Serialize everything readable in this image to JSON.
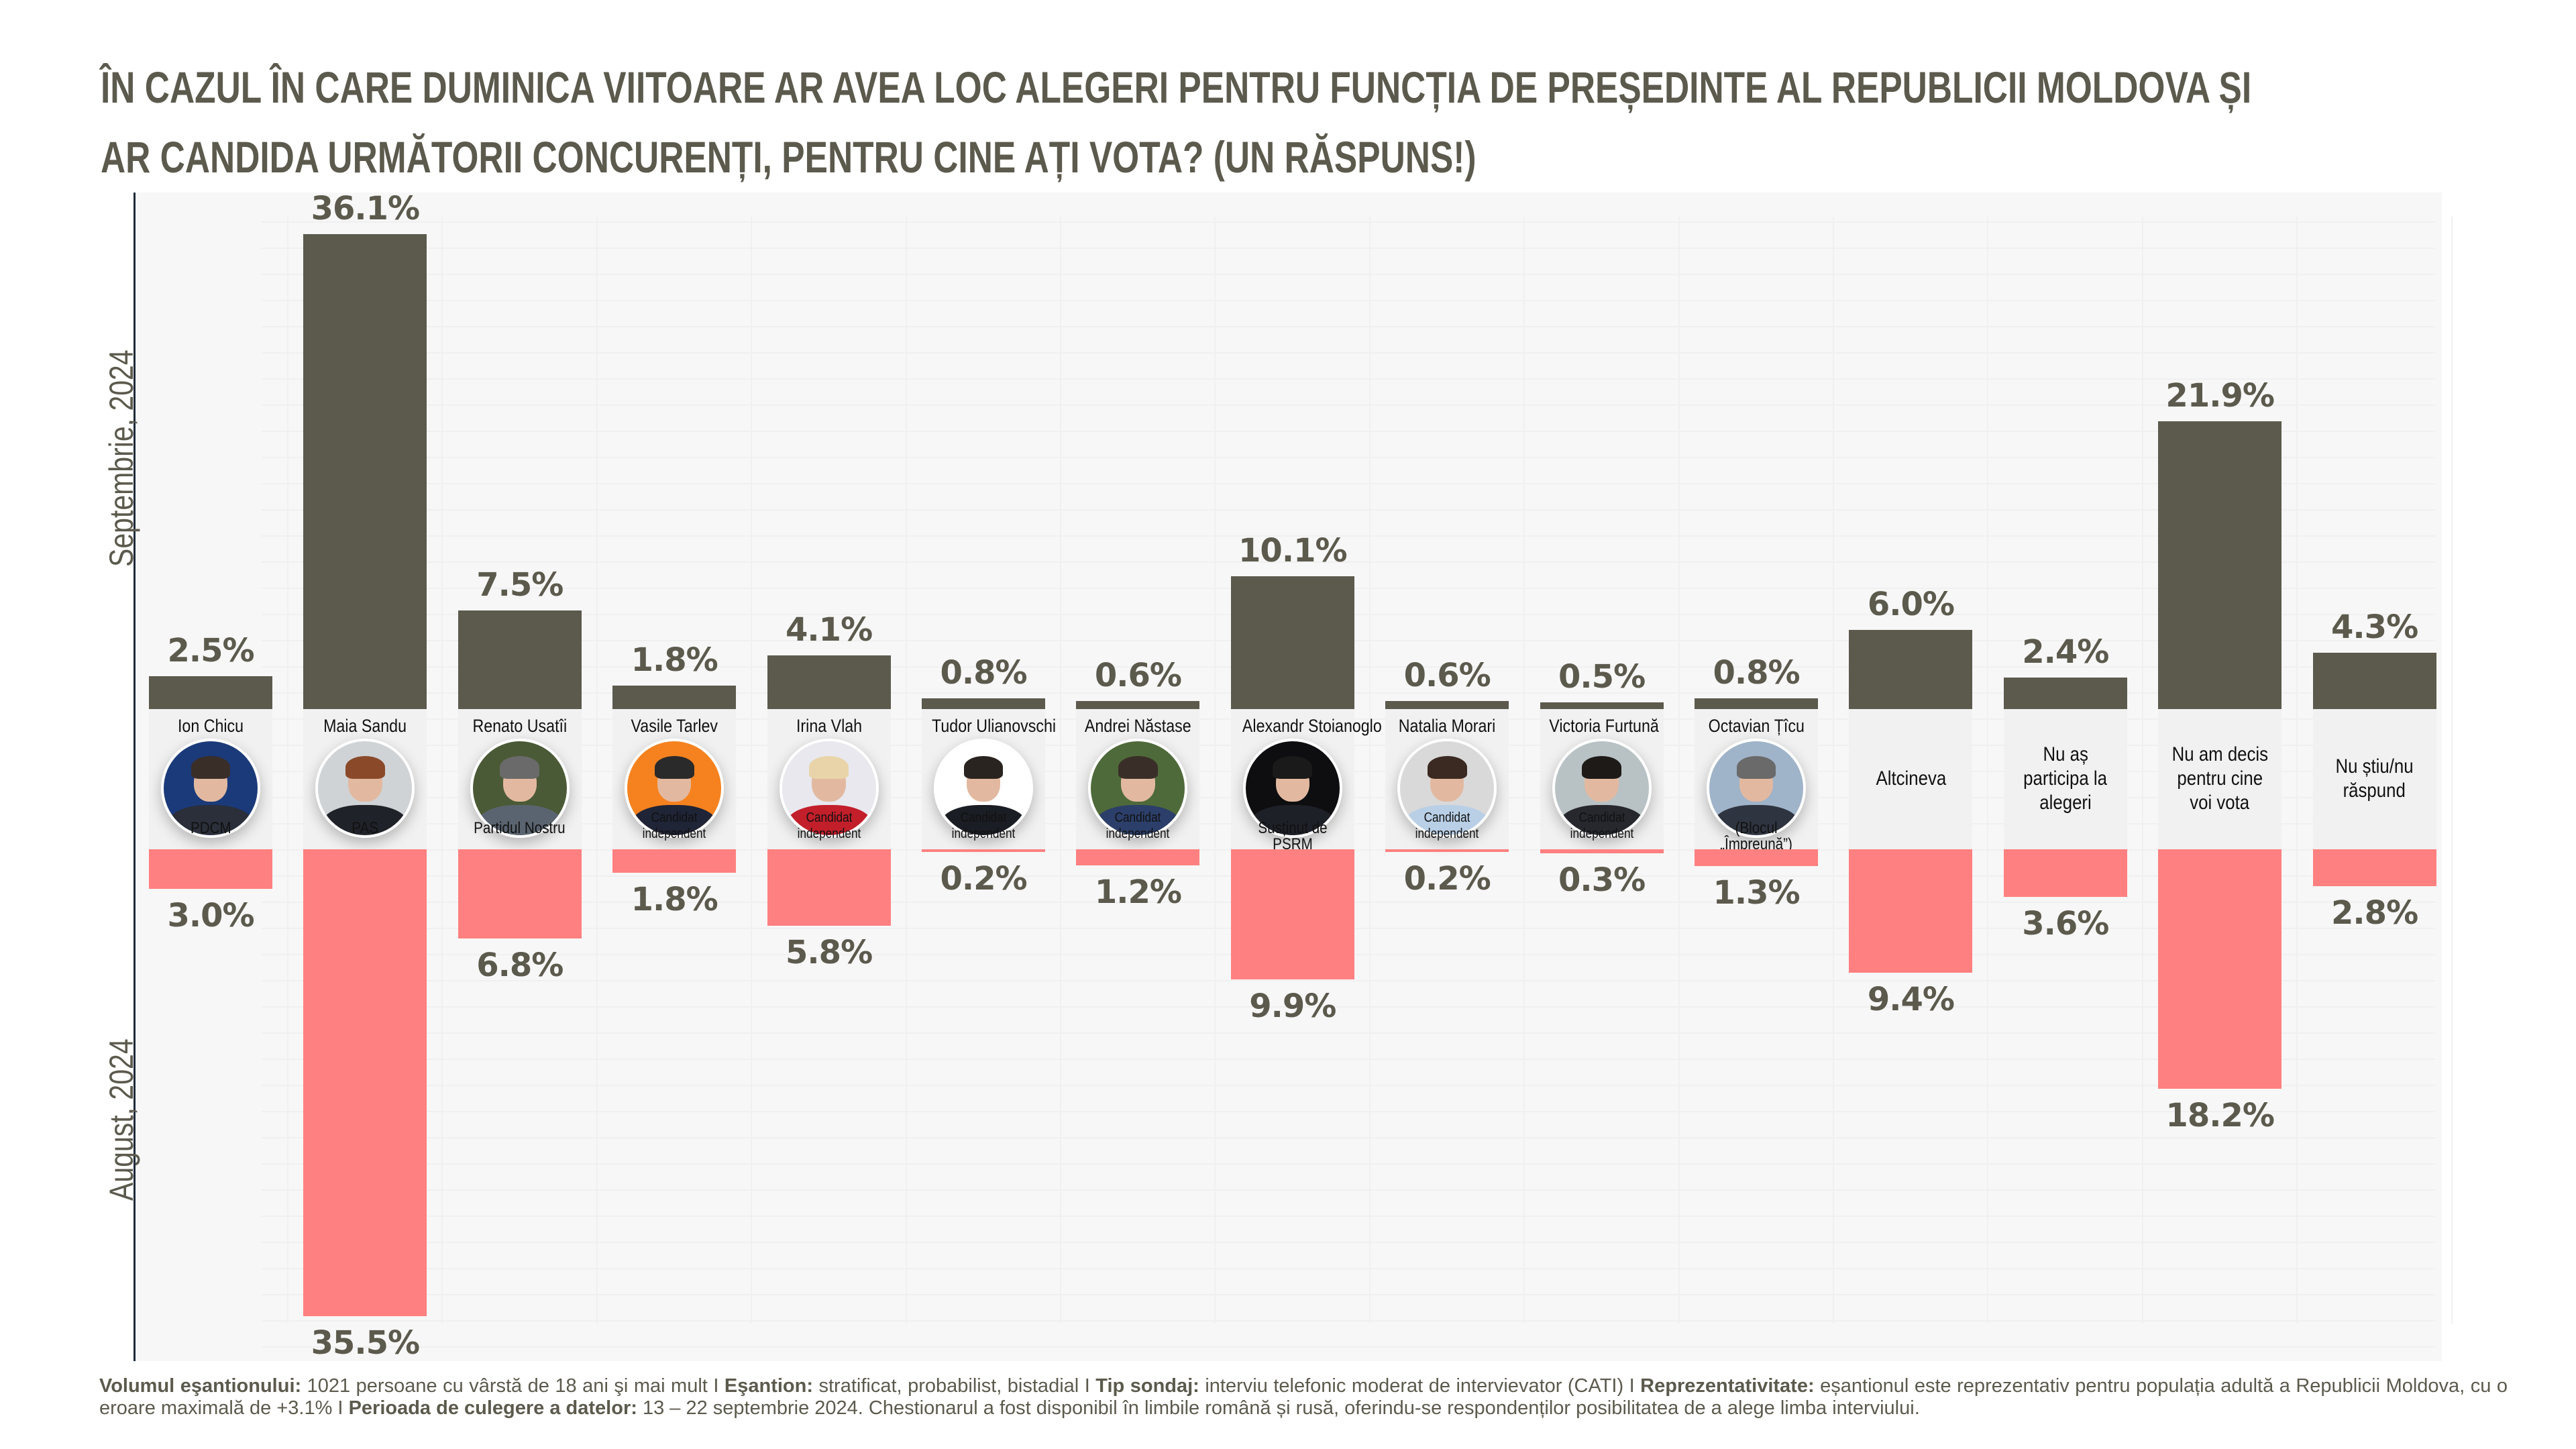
{
  "title": {
    "line1": "ÎN CAZUL ÎN CARE DUMINICA VIITOARE AR AVEA LOC ALEGERI PENTRU FUNCȚIA DE PREȘEDINTE AL REPUBLICII MOLDOVA ȘI",
    "line2": "AR CANDIDA URMĂTORII CONCURENȚI, PENTRU CINE AȚI VOTA? (UN RĂSPUNS!)"
  },
  "colors": {
    "september": "#5c5a4d",
    "august": "#ff8080",
    "text": "#5c5a4d",
    "panel": "#f7f7f7"
  },
  "chart_data": {
    "type": "bar",
    "title": "ÎN CAZUL ÎN CARE DUMINICA VIITOARE AR AVEA LOC ALEGERI PENTRU FUNCȚIA DE PREȘEDINTE AL REPUBLICII MOLDOVA ȘI AR CANDIDA URMĂTORII CONCURENȚI, PENTRU CINE AȚI VOTA? (UN RĂSPUNS!)",
    "layout": "mirrored",
    "unit": "%",
    "series_labels": {
      "upper": "Septembrie, 2024",
      "lower": "August, 2024"
    },
    "categories": [
      {
        "name": "Ion Chicu",
        "affiliation": "PDCM",
        "photo": true,
        "photo_bg": "#1b3a7a",
        "hair": "#3a2e28",
        "suit": "#2a2f3a"
      },
      {
        "name": "Maia Sandu",
        "affiliation": "PAS",
        "photo": true,
        "photo_bg": "#cfd3d6",
        "hair": "#8a4a2a",
        "suit": "#1f2228"
      },
      {
        "name": "Renato Usatîi",
        "affiliation": "Partidul Nostru",
        "photo": true,
        "photo_bg": "#4a5a36",
        "hair": "#6a6a6a",
        "suit": "#5a6470"
      },
      {
        "name": "Vasile Tarlev",
        "affiliation": "Candidat independent",
        "photo": true,
        "photo_bg": "#f5821f",
        "hair": "#2a2a2a",
        "suit": "#1f2436"
      },
      {
        "name": "Irina Vlah",
        "affiliation": "Candidat independent",
        "photo": true,
        "photo_bg": "#e8e8ee",
        "hair": "#e8d4a8",
        "suit": "#c21f2a"
      },
      {
        "name": "Tudor Ulianovschi",
        "affiliation": "Candidat independent",
        "photo": true,
        "photo_bg": "#ffffff",
        "hair": "#2a2420",
        "suit": "#1b1d24"
      },
      {
        "name": "Andrei Năstase",
        "affiliation": "Candidat independent",
        "photo": true,
        "photo_bg": "#4f6a3a",
        "hair": "#3a2e28",
        "suit": "#2c3f6a"
      },
      {
        "name": "Alexandr Stoianoglo",
        "affiliation": "Susținut de PSRM",
        "photo": true,
        "photo_bg": "#0e0e10",
        "hair": "#1a1a1a",
        "suit": "#1e2028"
      },
      {
        "name": "Natalia Morari",
        "affiliation": "Candidat independent",
        "photo": true,
        "photo_bg": "#d9d9d9",
        "hair": "#3a2a22",
        "suit": "#b9cfe6"
      },
      {
        "name": "Victoria Furtună",
        "affiliation": "Candidat independent",
        "photo": true,
        "photo_bg": "#b8c2c4",
        "hair": "#1e1a18",
        "suit": "#26282e"
      },
      {
        "name": "Octavian Țîcu",
        "affiliation": "(Blocul „Împreună”)",
        "photo": true,
        "photo_bg": "#9fb3c9",
        "hair": "#6a6a6a",
        "suit": "#2e3440"
      },
      {
        "name": "Altcineva",
        "affiliation": "",
        "photo": false
      },
      {
        "name": "Nu aș participa la alegeri",
        "affiliation": "",
        "photo": false
      },
      {
        "name": "Nu am decis pentru cine voi vota",
        "affiliation": "",
        "photo": false
      },
      {
        "name": "Nu știu/nu răspund",
        "affiliation": "",
        "photo": false
      }
    ],
    "text_cells": [
      [
        "Altcineva"
      ],
      [
        "Nu aș",
        "participa la",
        "alegeri"
      ],
      [
        "Nu am decis",
        "pentru cine",
        "voi vota"
      ],
      [
        "Nu știu/nu",
        "răspund"
      ]
    ],
    "series": [
      {
        "name": "Septembrie, 2024",
        "values": [
          2.5,
          36.1,
          7.5,
          1.8,
          4.1,
          0.8,
          0.6,
          10.1,
          0.6,
          0.5,
          0.8,
          6.0,
          2.4,
          21.9,
          4.3
        ],
        "labels": [
          "2.5%",
          "36.1%",
          "7.5%",
          "1.8%",
          "4.1%",
          "0.8%",
          "0.6%",
          "10.1%",
          "0.6%",
          "0.5%",
          "0.8%",
          "6.0%",
          "2.4%",
          "21.9%",
          "4.3%"
        ]
      },
      {
        "name": "August, 2024",
        "values": [
          3.0,
          35.5,
          6.8,
          1.8,
          5.8,
          0.2,
          1.2,
          9.9,
          0.2,
          0.3,
          1.3,
          9.4,
          3.6,
          18.2,
          2.8
        ],
        "labels": [
          "3.0%",
          "35.5%",
          "6.8%",
          "1.8%",
          "5.8%",
          "0.2%",
          "1.2%",
          "9.9%",
          "0.2%",
          "0.3%",
          "1.3%",
          "9.4%",
          "3.6%",
          "18.2%",
          "2.8%"
        ]
      }
    ],
    "xlabel": "",
    "ylabel": "",
    "ylim": [
      0,
      40
    ],
    "grid": true,
    "legend": "none"
  },
  "footer": {
    "items": [
      {
        "label": "Volumul eşantionului:",
        "text": " 1021 persoane cu vârstă de 18 ani şi mai mult  I  "
      },
      {
        "label": "Eşantion:",
        "text": " stratificat, probabilist, bistadial  I  "
      },
      {
        "label": "Tip sondaj:",
        "text": " interviu telefonic moderat de intervievator (CATI)  I  "
      },
      {
        "label": "Reprezentativitate:",
        "text": " eșantionul este reprezentativ pentru populația adultă a Republicii Moldova, cu o eroare maximală de +3.1%  I  "
      },
      {
        "label": "Perioada de culegere a datelor:",
        "text": " 13 – 22 septembrie 2024. Chestionarul a fost disponibil în limbile română și rusă, oferindu-se respondenților posibilitatea de a alege limba interviului."
      }
    ]
  }
}
